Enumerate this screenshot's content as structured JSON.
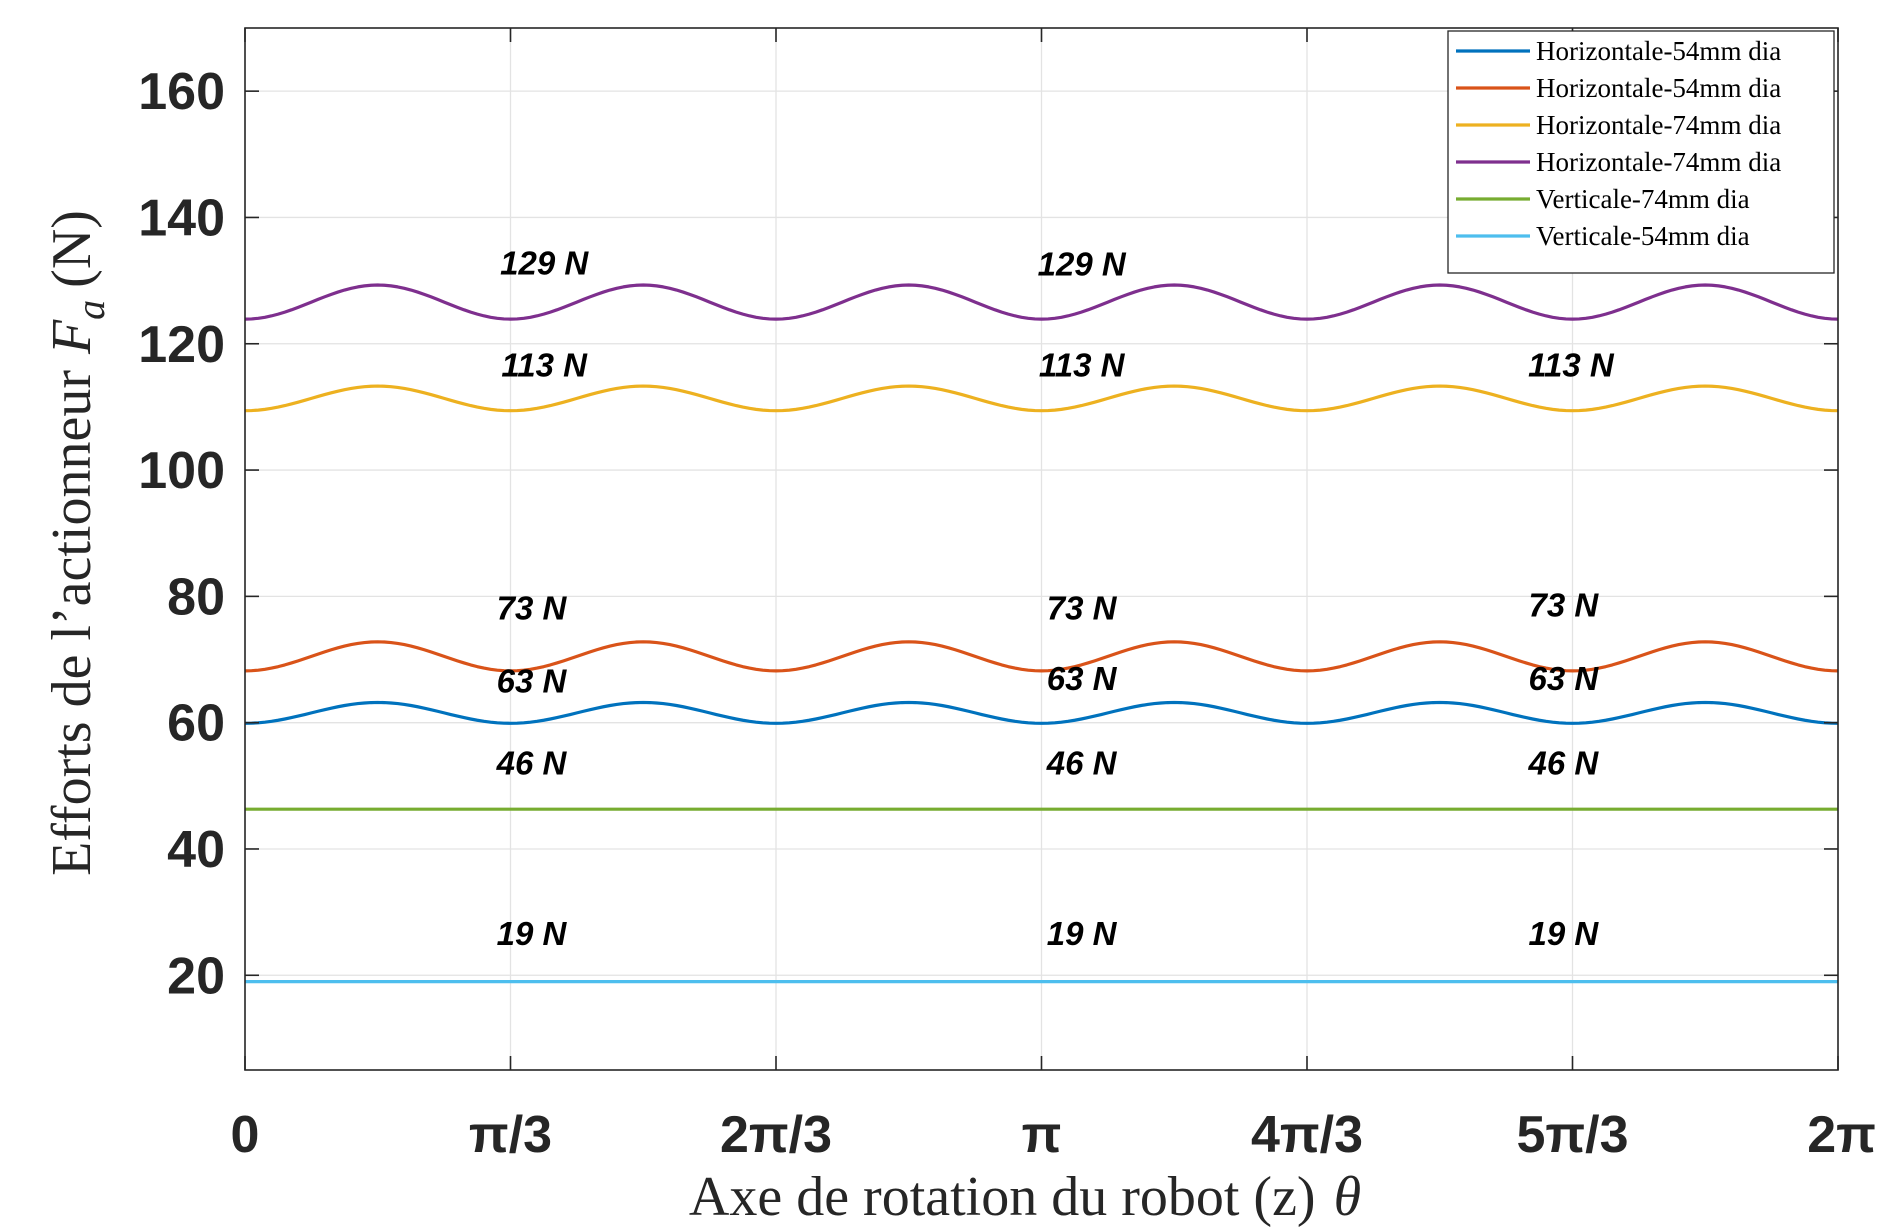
{
  "chart_data": {
    "type": "line",
    "title": "",
    "xlabel": "Axe de rotation du robot (z)",
    "xlabel_symbol": "θ",
    "ylabel": "Efforts de l’actionneur",
    "ylabel_symbol": "F",
    "ylabel_subscript": "a",
    "ylabel_unit": "(N)",
    "xlim": [
      0,
      6.283185
    ],
    "ylim": [
      5,
      170
    ],
    "grid": true,
    "legend_position": "top-right",
    "x_ticks": [
      {
        "value": 0,
        "label": "0"
      },
      {
        "value": 1.047198,
        "label": "π/3"
      },
      {
        "value": 2.094395,
        "label": "2π/3"
      },
      {
        "value": 3.141593,
        "label": "π"
      },
      {
        "value": 4.18879,
        "label": "4π/3"
      },
      {
        "value": 5.235988,
        "label": "5π/3"
      },
      {
        "value": 6.283185,
        "label": "2π"
      }
    ],
    "y_ticks": [
      {
        "value": 20,
        "label": "20"
      },
      {
        "value": 40,
        "label": "40"
      },
      {
        "value": 60,
        "label": "60"
      },
      {
        "value": 80,
        "label": "80"
      },
      {
        "value": 100,
        "label": "100"
      },
      {
        "value": 120,
        "label": "120"
      },
      {
        "value": 140,
        "label": "140"
      },
      {
        "value": 160,
        "label": "160"
      }
    ],
    "series": [
      {
        "name": "Horizontale-54mm dia",
        "color": "#0072BD",
        "min": 59.9,
        "max": 63.2,
        "periods": 6,
        "samples": 241
      },
      {
        "name": "Horizontale-54mm dia",
        "color": "#D95319",
        "min": 68.2,
        "max": 72.8,
        "periods": 6,
        "samples": 241
      },
      {
        "name": "Horizontale-74mm dia",
        "color": "#EDB120",
        "min": 109.4,
        "max": 113.3,
        "periods": 6,
        "samples": 241
      },
      {
        "name": "Horizontale-74mm dia",
        "color": "#7E2F8E",
        "min": 123.9,
        "max": 129.3,
        "periods": 6,
        "samples": 241
      },
      {
        "name": "Verticale-74mm dia",
        "color": "#77AC30",
        "min": 46.3,
        "max": 46.3,
        "periods": 6,
        "samples": 2
      },
      {
        "name": "Verticale-54mm dia",
        "color": "#4DBEEE",
        "min": 19.0,
        "max": 19.0,
        "periods": 6,
        "samples": 2
      }
    ],
    "annotations": [
      {
        "text": "129 N",
        "x": 1.18,
        "y": 131.0
      },
      {
        "text": "129 N",
        "x": 3.3,
        "y": 130.8
      },
      {
        "text": "113 N",
        "x": 1.18,
        "y": 114.8
      },
      {
        "text": "113 N",
        "x": 3.3,
        "y": 114.8
      },
      {
        "text": "113 N",
        "x": 5.23,
        "y": 114.8
      },
      {
        "text": "73 N",
        "x": 1.13,
        "y": 76.3
      },
      {
        "text": "73 N",
        "x": 3.3,
        "y": 76.3
      },
      {
        "text": "73 N",
        "x": 5.2,
        "y": 76.8
      },
      {
        "text": "63 N",
        "x": 1.13,
        "y": 64.8
      },
      {
        "text": "63 N",
        "x": 3.3,
        "y": 65.2
      },
      {
        "text": "63 N",
        "x": 5.2,
        "y": 65.2
      },
      {
        "text": "46 N",
        "x": 1.13,
        "y": 51.8
      },
      {
        "text": "46 N",
        "x": 3.3,
        "y": 51.8
      },
      {
        "text": "46 N",
        "x": 5.2,
        "y": 51.8
      },
      {
        "text": "19 N",
        "x": 1.13,
        "y": 24.8
      },
      {
        "text": "19 N",
        "x": 3.3,
        "y": 24.8
      },
      {
        "text": "19 N",
        "x": 5.2,
        "y": 24.8
      }
    ]
  }
}
